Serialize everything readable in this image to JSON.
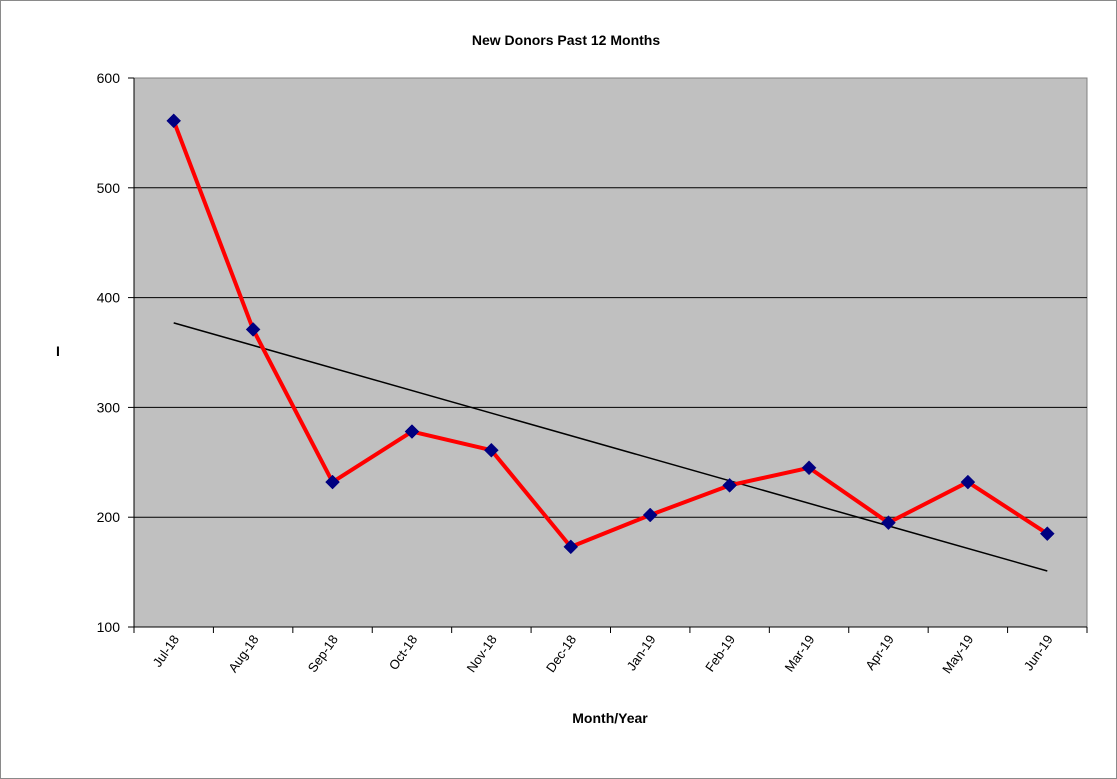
{
  "chart_data": {
    "type": "line",
    "title": "New Donors Past 12 Months",
    "xlabel": "Month/Year",
    "ylabel": "I",
    "categories": [
      "Jul-18",
      "Aug-18",
      "Sep-18",
      "Oct-18",
      "Nov-18",
      "Dec-18",
      "Jan-19",
      "Feb-19",
      "Mar-19",
      "Apr-19",
      "May-19",
      "Jun-19"
    ],
    "series": [
      {
        "values": [
          561,
          371,
          232,
          278,
          261,
          173,
          202,
          229,
          245,
          195,
          232,
          185
        ]
      }
    ],
    "trendline": {
      "type": "linear",
      "start": 377,
      "end": 151
    },
    "ylim": [
      100,
      600
    ],
    "yticks": [
      100,
      200,
      300,
      400,
      500,
      600
    ],
    "grid": true,
    "legend": "none",
    "colors": {
      "plot_background": "#c0c0c0",
      "line": "#ff0000",
      "marker": "#000080",
      "trendline": "#000000",
      "gridline": "#000000"
    }
  }
}
